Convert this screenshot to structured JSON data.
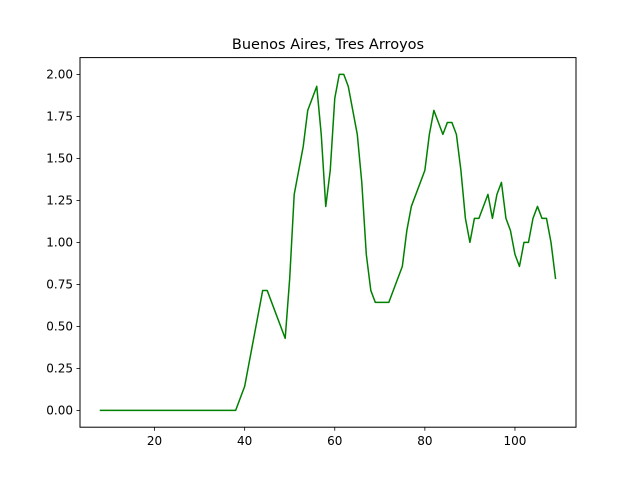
{
  "chart_data": {
    "type": "line",
    "title": "Buenos Aires, Tres Arroyos",
    "xlabel": "",
    "ylabel": "",
    "xlim": [
      3.45,
      113.55
    ],
    "ylim": [
      -0.1,
      2.1
    ],
    "xticks": [
      20,
      40,
      60,
      80,
      100
    ],
    "yticks": [
      0.0,
      0.25,
      0.5,
      0.75,
      1.0,
      1.25,
      1.5,
      1.75,
      2.0
    ],
    "xtick_labels": [
      "20",
      "40",
      "60",
      "80",
      "100"
    ],
    "ytick_labels": [
      "0.00",
      "0.25",
      "0.50",
      "0.75",
      "1.00",
      "1.25",
      "1.50",
      "1.75",
      "2.00"
    ],
    "grid": false,
    "series": [
      {
        "color": "#008000",
        "x": [
          8,
          38,
          40,
          44,
          45,
          49,
          50,
          51,
          53,
          54,
          56,
          57,
          58,
          59,
          60,
          61,
          62,
          63,
          65,
          66,
          67,
          68,
          69,
          72,
          75,
          76,
          77,
          80,
          81,
          82,
          84,
          85,
          86,
          87,
          88,
          89,
          90,
          91,
          92,
          94,
          95,
          96,
          97,
          98,
          99,
          100,
          101,
          102,
          103,
          104,
          105,
          106,
          107,
          108,
          109
        ],
        "y": [
          0.0,
          0.0,
          0.143,
          0.714,
          0.714,
          0.429,
          0.786,
          1.286,
          1.571,
          1.786,
          1.929,
          1.643,
          1.214,
          1.429,
          1.857,
          2.0,
          2.0,
          1.929,
          1.643,
          1.357,
          0.929,
          0.714,
          0.643,
          0.643,
          0.857,
          1.071,
          1.214,
          1.429,
          1.643,
          1.786,
          1.643,
          1.714,
          1.714,
          1.643,
          1.429,
          1.143,
          1.0,
          1.143,
          1.143,
          1.286,
          1.143,
          1.286,
          1.357,
          1.143,
          1.071,
          0.929,
          0.857,
          1.0,
          1.0,
          1.143,
          1.214,
          1.143,
          1.143,
          1.0,
          0.786
        ]
      }
    ]
  }
}
